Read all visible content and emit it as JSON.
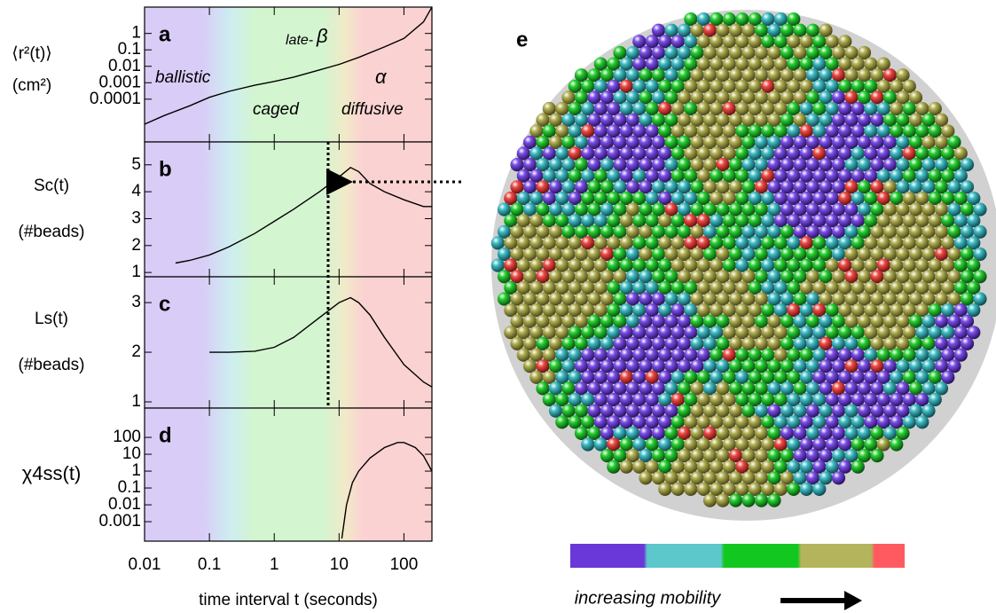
{
  "chart_data": [
    {
      "type": "line",
      "panel": "a",
      "ylabel": [
        "⟨r²(t)⟩",
        "(cm²)"
      ],
      "log_x": true,
      "log_y": true,
      "xlim": [
        0.01,
        270
      ],
      "ylim": [
        2.5e-07,
        40
      ],
      "yticks": [
        1,
        0.1,
        0.01,
        0.001,
        0.0001
      ],
      "annotations": [
        "ballistic",
        "caged",
        "late-",
        "β",
        "α",
        "diffusive"
      ],
      "series": [
        {
          "color": "#000000",
          "x": [
            0.01,
            0.02,
            0.05,
            0.1,
            0.2,
            0.5,
            1,
            2,
            5,
            10,
            20,
            50,
            100,
            200,
            270
          ],
          "values": [
            3e-06,
            1e-05,
            4e-05,
            0.00013,
            0.0003,
            0.0007,
            0.0012,
            0.0022,
            0.006,
            0.013,
            0.035,
            0.15,
            0.5,
            5,
            40
          ]
        }
      ]
    },
    {
      "type": "line",
      "panel": "b",
      "ylabel": [
        "Sc(t)",
        "(#beads)"
      ],
      "log_x": true,
      "log_y": false,
      "xlim": [
        0.01,
        270
      ],
      "ylim": [
        0.84,
        5.85
      ],
      "yticks": [
        1,
        2,
        3,
        4,
        5
      ],
      "series": [
        {
          "color": "#000000",
          "x": [
            0.03,
            0.05,
            0.1,
            0.2,
            0.5,
            1,
            2,
            5,
            10,
            15,
            20,
            30,
            50,
            100,
            200,
            270
          ],
          "values": [
            1.35,
            1.45,
            1.65,
            1.95,
            2.45,
            2.9,
            3.35,
            4.0,
            4.55,
            4.9,
            4.75,
            4.3,
            4.0,
            3.7,
            3.45,
            3.45
          ]
        }
      ]
    },
    {
      "type": "line",
      "panel": "c",
      "ylabel": [
        "Ls(t)",
        "(#beads)"
      ],
      "log_x": true,
      "log_y": false,
      "xlim": [
        0.01,
        270
      ],
      "ylim": [
        0.875,
        3.52
      ],
      "yticks": [
        1,
        2,
        3
      ],
      "series": [
        {
          "color": "#000000",
          "x": [
            0.1,
            0.2,
            0.5,
            1,
            2,
            5,
            10,
            15,
            20,
            30,
            50,
            100,
            200,
            270
          ],
          "values": [
            2.0,
            2.0,
            2.02,
            2.1,
            2.3,
            2.7,
            3.0,
            3.1,
            3.0,
            2.75,
            2.3,
            1.75,
            1.4,
            1.3
          ]
        }
      ]
    },
    {
      "type": "line",
      "panel": "d",
      "ylabel": [
        "χ4ss(t)"
      ],
      "xlabel": "time interval t (seconds)",
      "log_x": true,
      "log_y": true,
      "xlim": [
        0.01,
        270
      ],
      "ylim": [
        7e-05,
        5500
      ],
      "xticks": [
        0.01,
        0.1,
        1,
        10,
        100
      ],
      "yticks": [
        100,
        10,
        1,
        0.1,
        0.01,
        0.001
      ],
      "series": [
        {
          "color": "#000000",
          "x": [
            11,
            13,
            16,
            20,
            30,
            50,
            80,
            100,
            150,
            200,
            270
          ],
          "values": [
            0.0001,
            0.01,
            0.2,
            1,
            6,
            25,
            50,
            50,
            25,
            8,
            1
          ]
        }
      ]
    }
  ],
  "image_panel": {
    "label": "e",
    "caption": "increasing mobility"
  }
}
